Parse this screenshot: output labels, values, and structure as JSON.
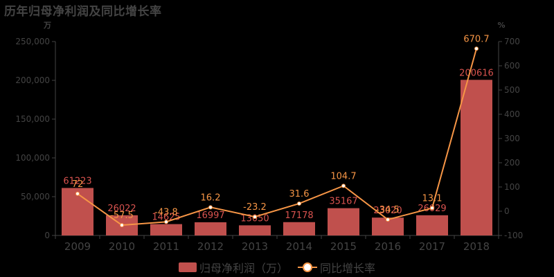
{
  "title": "历年归母净利润及同比增长率",
  "left_unit": "万",
  "right_unit": "%",
  "legend": {
    "bar_label": "归母净利润（万）",
    "line_label": "同比增长率"
  },
  "colors": {
    "bar": "#c0504d",
    "bar_label": "#d9534f",
    "line": "#f79646",
    "axis": "#444444"
  },
  "chart_data": {
    "type": "bar+line",
    "title": "历年归母净利润及同比增长率",
    "categories": [
      "2009",
      "2010",
      "2011",
      "2012",
      "2013",
      "2014",
      "2015",
      "2016",
      "2017",
      "2018"
    ],
    "series": [
      {
        "name": "归母净利润（万）",
        "type": "bar",
        "axis": "left",
        "values": [
          61223,
          26022,
          14625,
          16997,
          13050,
          17178,
          35167,
          23020,
          26029,
          200616
        ]
      },
      {
        "name": "同比增长率",
        "type": "line",
        "axis": "right",
        "values": [
          72,
          -57.5,
          -43.8,
          16.2,
          -23.2,
          31.6,
          104.7,
          -34.5,
          13.1,
          670.7
        ]
      }
    ],
    "left_axis": {
      "unit": "万",
      "ylim": [
        0,
        250000
      ],
      "ticks": [
        "0",
        "50,000",
        "100,000",
        "150,000",
        "200,000",
        "250,000"
      ]
    },
    "right_axis": {
      "unit": "%",
      "ylim": [
        -100,
        700
      ],
      "ticks": [
        "-100",
        "0",
        "100",
        "200",
        "300",
        "400",
        "500",
        "600",
        "700"
      ]
    },
    "grid": false,
    "legend_position": "bottom"
  }
}
